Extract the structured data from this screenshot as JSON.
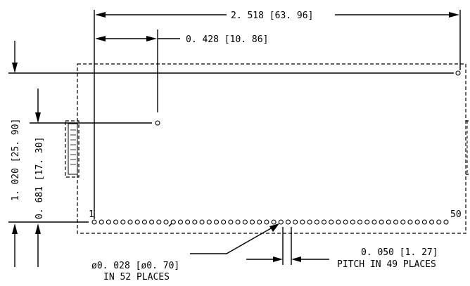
{
  "dimensions": {
    "overall_width": "2. 518 [63. 96]",
    "hole_offset": "0. 428 [10. 86]",
    "overall_height": "1. 020 [25. 90]",
    "hole_height": "0. 681 [17. 30]",
    "pin_diameter": "ø0. 028 [ø0. 70]",
    "pin_count": "IN 52 PLACES",
    "pitch": "0. 050 [1. 27]",
    "pitch_note": "PITCH IN 49 PLACES"
  },
  "pin_labels": {
    "first": "1",
    "last": "50"
  }
}
